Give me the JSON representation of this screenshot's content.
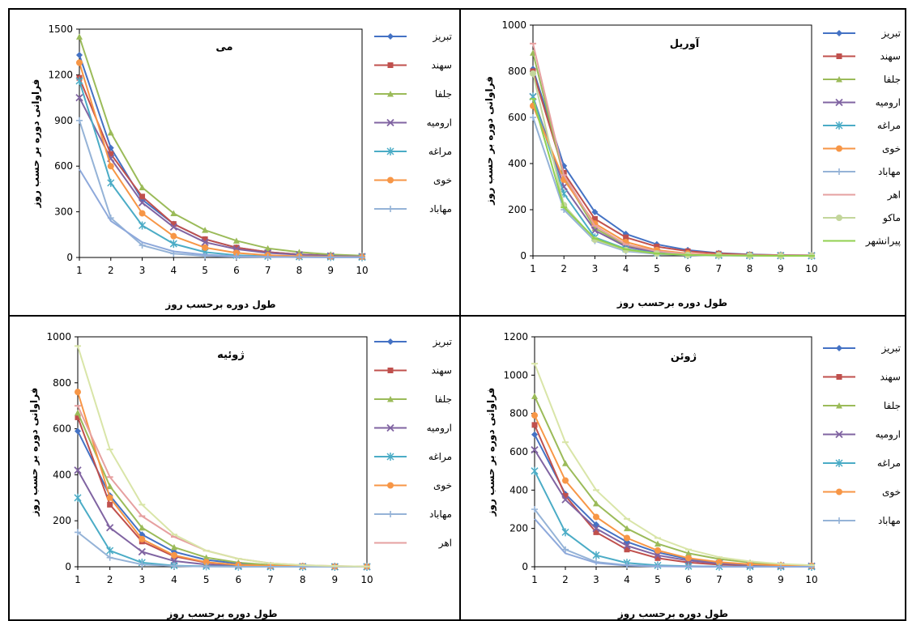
{
  "chart_data": [
    {
      "type": "line",
      "title": "می",
      "xlabel": "طول دوره برحسب روز",
      "ylabel": "فراوانی دوره بر حسب روز",
      "x": [
        1,
        2,
        3,
        4,
        5,
        6,
        7,
        8,
        9,
        10
      ],
      "ylim": [
        0,
        1500
      ],
      "yticks": [
        0,
        300,
        600,
        900,
        1200,
        1500
      ],
      "grid": false,
      "legend": "right",
      "series": [
        {
          "name": "تبریز",
          "color": "#4472C4",
          "marker": "diamond",
          "values": [
            1330,
            720,
            380,
            220,
            120,
            65,
            35,
            20,
            12,
            8
          ]
        },
        {
          "name": "سهند",
          "color": "#C0504D",
          "marker": "square",
          "values": [
            1180,
            680,
            400,
            220,
            120,
            65,
            35,
            20,
            12,
            8
          ]
        },
        {
          "name": "جلفا",
          "color": "#9BBB59",
          "marker": "triangle",
          "values": [
            1450,
            820,
            460,
            290,
            180,
            110,
            60,
            35,
            20,
            12
          ]
        },
        {
          "name": "ارومیه",
          "color": "#8064A2",
          "marker": "x",
          "values": [
            1050,
            650,
            360,
            200,
            100,
            55,
            30,
            18,
            10,
            6
          ]
        },
        {
          "name": "مراغه",
          "color": "#4BACC6",
          "marker": "star",
          "values": [
            1160,
            490,
            210,
            90,
            35,
            15,
            8,
            5,
            3,
            2
          ]
        },
        {
          "name": "خوی",
          "color": "#F79646",
          "marker": "circle",
          "values": [
            1280,
            600,
            290,
            140,
            65,
            30,
            15,
            8,
            5,
            3
          ]
        },
        {
          "name": "مهاباد",
          "color": "#95B3D7",
          "marker": "plus",
          "values": [
            900,
            260,
            80,
            25,
            10,
            5,
            3,
            2,
            1,
            1
          ]
        },
        {
          "name": "",
          "color": "#8EA9DB",
          "marker": "none",
          "values": [
            580,
            240,
            100,
            40,
            18,
            8,
            4,
            2,
            1,
            1
          ]
        }
      ]
    },
    {
      "type": "line",
      "title": "آوریل",
      "xlabel": "طول دوره برحسب روز",
      "ylabel": "فراوانی دوره بر حسب روز",
      "x": [
        1,
        2,
        3,
        4,
        5,
        6,
        7,
        8,
        9,
        10
      ],
      "ylim": [
        0,
        1000
      ],
      "yticks": [
        0,
        200,
        400,
        600,
        800,
        1000
      ],
      "grid": false,
      "legend": "right",
      "series": [
        {
          "name": "تبریز",
          "color": "#4472C4",
          "marker": "diamond",
          "values": [
            810,
            390,
            190,
            95,
            50,
            25,
            12,
            6,
            3,
            2
          ]
        },
        {
          "name": "سهند",
          "color": "#C0504D",
          "marker": "square",
          "values": [
            800,
            360,
            160,
            80,
            40,
            20,
            10,
            5,
            3,
            2
          ]
        },
        {
          "name": "جلفا",
          "color": "#9BBB59",
          "marker": "triangle",
          "values": [
            880,
            340,
            120,
            45,
            18,
            8,
            4,
            2,
            1,
            1
          ]
        },
        {
          "name": "ارومیه",
          "color": "#8064A2",
          "marker": "x",
          "values": [
            690,
            300,
            110,
            40,
            15,
            6,
            3,
            2,
            1,
            1
          ]
        },
        {
          "name": "مراغه",
          "color": "#4BACC6",
          "marker": "star",
          "values": [
            690,
            270,
            80,
            30,
            12,
            5,
            2,
            1,
            1,
            0
          ]
        },
        {
          "name": "خوی",
          "color": "#F79646",
          "marker": "circle",
          "values": [
            650,
            330,
            140,
            60,
            25,
            10,
            5,
            2,
            1,
            1
          ]
        },
        {
          "name": "مهاباد",
          "color": "#95B3D7",
          "marker": "plus",
          "values": [
            600,
            200,
            65,
            20,
            8,
            3,
            1,
            1,
            0,
            0
          ]
        },
        {
          "name": "اهر",
          "color": "#E6A0A0",
          "marker": "dash",
          "values": [
            920,
            350,
            130,
            50,
            20,
            8,
            4,
            2,
            1,
            1
          ]
        },
        {
          "name": "ماکو",
          "color": "#C3D69B",
          "marker": "circle",
          "values": [
            790,
            220,
            70,
            25,
            10,
            4,
            2,
            1,
            0,
            0
          ]
        },
        {
          "name": "پیرانشهر",
          "color": "#92D050",
          "marker": "dash",
          "values": [
            680,
            210,
            75,
            28,
            10,
            4,
            2,
            1,
            0,
            0
          ]
        }
      ]
    },
    {
      "type": "line",
      "title": "ژوئیه",
      "xlabel": "طول دوره برحسب روز",
      "ylabel": "فراوانی دوره بر حسب روز",
      "x": [
        1,
        2,
        3,
        4,
        5,
        6,
        7,
        8,
        9,
        10
      ],
      "ylim": [
        0,
        1000
      ],
      "yticks": [
        0,
        200,
        400,
        600,
        800,
        1000
      ],
      "grid": false,
      "legend": "right",
      "series": [
        {
          "name": "تبریز",
          "color": "#4472C4",
          "marker": "diamond",
          "values": [
            590,
            310,
            140,
            65,
            30,
            14,
            7,
            3,
            2,
            1
          ]
        },
        {
          "name": "سهند",
          "color": "#C0504D",
          "marker": "square",
          "values": [
            650,
            270,
            110,
            45,
            18,
            8,
            4,
            2,
            1,
            1
          ]
        },
        {
          "name": "جلفا",
          "color": "#9BBB59",
          "marker": "triangle",
          "values": [
            670,
            350,
            170,
            85,
            40,
            18,
            8,
            4,
            2,
            1
          ]
        },
        {
          "name": "ارومیه",
          "color": "#8064A2",
          "marker": "x",
          "values": [
            420,
            170,
            65,
            25,
            10,
            4,
            2,
            1,
            0,
            0
          ]
        },
        {
          "name": "مراغه",
          "color": "#4BACC6",
          "marker": "star",
          "values": [
            300,
            70,
            18,
            5,
            2,
            1,
            0,
            0,
            0,
            0
          ]
        },
        {
          "name": "خوی",
          "color": "#F79646",
          "marker": "circle",
          "values": [
            760,
            300,
            120,
            50,
            20,
            8,
            4,
            2,
            1,
            1
          ]
        },
        {
          "name": "مهاباد",
          "color": "#95B3D7",
          "marker": "plus",
          "values": [
            150,
            40,
            10,
            3,
            1,
            0,
            0,
            0,
            0,
            0
          ]
        },
        {
          "name": "اهر",
          "color": "#E6A0A0",
          "marker": "dash",
          "values": [
            700,
            390,
            220,
            130,
            70,
            35,
            15,
            7,
            3,
            1
          ]
        },
        {
          "name": "",
          "color": "#D9E5A8",
          "marker": "dash",
          "values": [
            960,
            510,
            270,
            140,
            70,
            35,
            15,
            7,
            3,
            1
          ]
        }
      ]
    },
    {
      "type": "line",
      "title": "ژوئن",
      "xlabel": "طول دوره برحسب روز",
      "ylabel": "فراوانی دوره بر حسب روز",
      "x": [
        1,
        2,
        3,
        4,
        5,
        6,
        7,
        8,
        9,
        10
      ],
      "ylim": [
        0,
        1200
      ],
      "yticks": [
        0,
        200,
        400,
        600,
        800,
        1000,
        1200
      ],
      "grid": false,
      "legend": "right",
      "series": [
        {
          "name": "تبریز",
          "color": "#4472C4",
          "marker": "diamond",
          "values": [
            690,
            380,
            220,
            130,
            75,
            40,
            22,
            12,
            7,
            4
          ]
        },
        {
          "name": "سهند",
          "color": "#C0504D",
          "marker": "square",
          "values": [
            740,
            370,
            180,
            90,
            45,
            22,
            11,
            6,
            3,
            2
          ]
        },
        {
          "name": "جلفا",
          "color": "#9BBB59",
          "marker": "triangle",
          "values": [
            890,
            540,
            330,
            200,
            120,
            70,
            40,
            22,
            12,
            7
          ]
        },
        {
          "name": "ارومیه",
          "color": "#8064A2",
          "marker": "x",
          "values": [
            610,
            350,
            200,
            110,
            60,
            32,
            17,
            9,
            5,
            3
          ]
        },
        {
          "name": "مراغه",
          "color": "#4BACC6",
          "marker": "star",
          "values": [
            500,
            180,
            60,
            20,
            7,
            3,
            1,
            1,
            0,
            0
          ]
        },
        {
          "name": "خوی",
          "color": "#F79646",
          "marker": "circle",
          "values": [
            790,
            450,
            260,
            150,
            85,
            45,
            24,
            13,
            7,
            4
          ]
        },
        {
          "name": "مهاباد",
          "color": "#95B3D7",
          "marker": "plus",
          "values": [
            300,
            90,
            25,
            8,
            3,
            1,
            0,
            0,
            0,
            0
          ]
        },
        {
          "name": "",
          "color": "#8EA9DB",
          "marker": "none",
          "values": [
            250,
            70,
            20,
            6,
            2,
            1,
            0,
            0,
            0,
            0
          ]
        },
        {
          "name": "",
          "color": "#D9E5A8",
          "marker": "dash",
          "values": [
            1060,
            650,
            400,
            250,
            150,
            90,
            50,
            28,
            15,
            8
          ]
        }
      ]
    }
  ]
}
